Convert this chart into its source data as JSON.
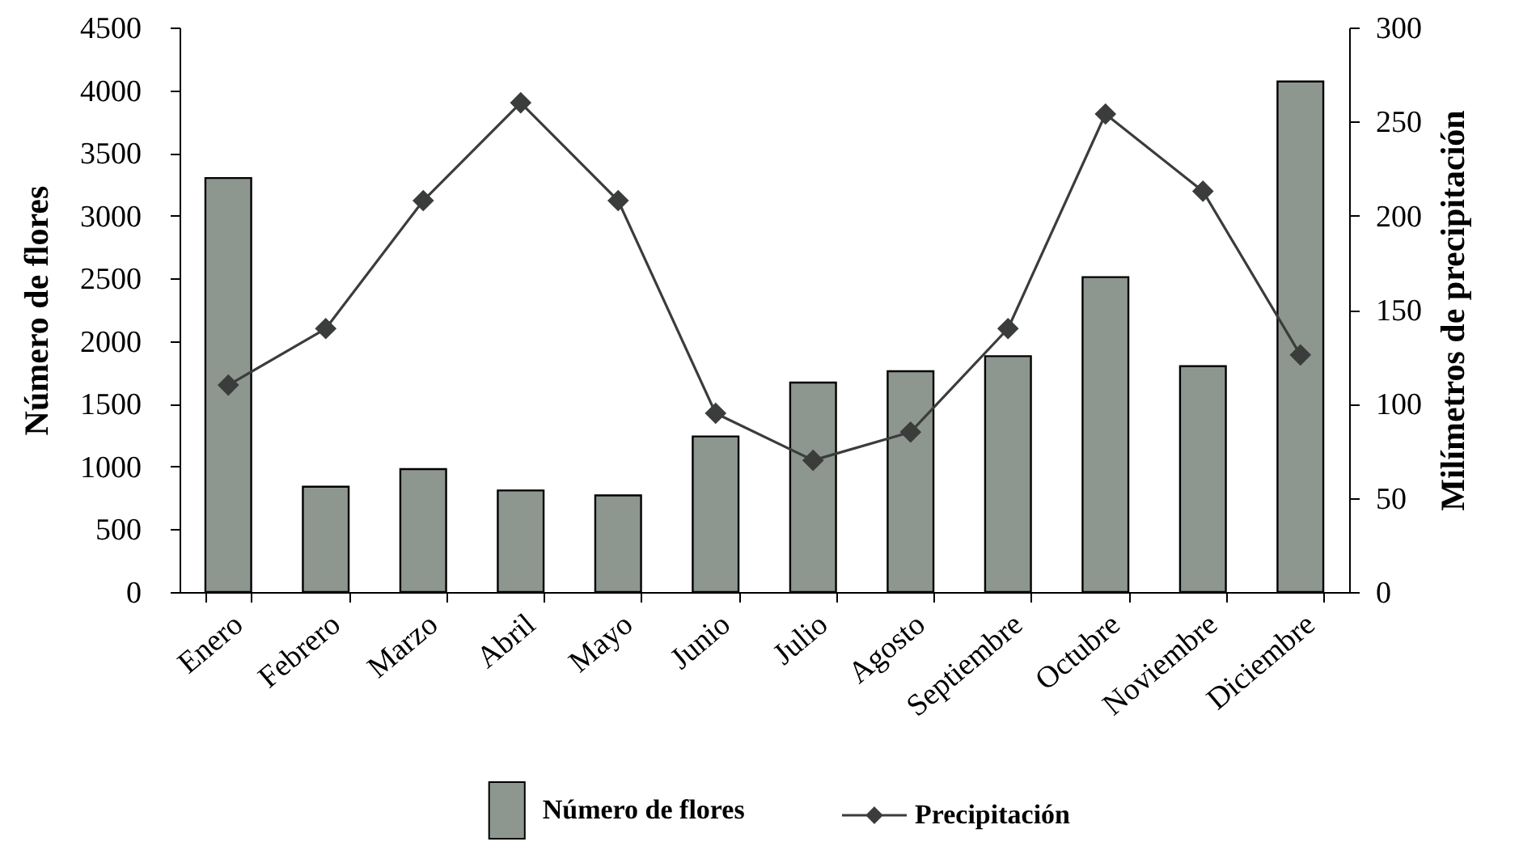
{
  "chart_data": {
    "type": "bar",
    "categories": [
      "Enero",
      "Febrero",
      "Marzo",
      "Abril",
      "Mayo",
      "Junio",
      "Julio",
      "Agosto",
      "Septiembre",
      "Octubre",
      "Noviembre",
      "Diciembre"
    ],
    "series": [
      {
        "name": "Número de flores",
        "color": "#8e9690",
        "values": [
          3300,
          840,
          980,
          810,
          770,
          1240,
          1670,
          1760,
          1880,
          2510,
          1800,
          4070
        ]
      },
      {
        "name": "Precipitación",
        "type": "line",
        "axis": "y2",
        "color": "#3a3d3b",
        "marker": "diamond",
        "values": [
          110,
          140,
          208,
          260,
          208,
          95,
          70,
          85,
          140,
          254,
          213,
          126
        ]
      }
    ],
    "ylabel": "Número de flores",
    "y2label": "Milímetros de precipitación",
    "ylim": [
      0,
      4500
    ],
    "yticks": [
      0,
      500,
      1000,
      1500,
      2000,
      2500,
      3000,
      3500,
      4000,
      4500
    ],
    "y2lim": [
      0,
      300
    ],
    "y2ticks": [
      0,
      50,
      100,
      150,
      200,
      250,
      300
    ],
    "legend": "bottom"
  }
}
